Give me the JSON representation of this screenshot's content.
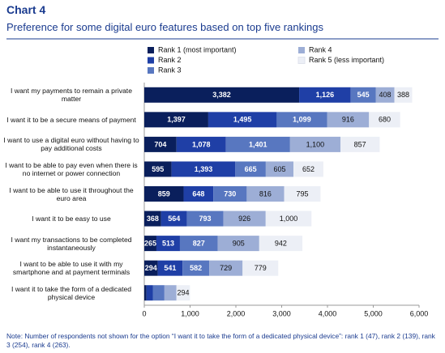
{
  "chart_data": {
    "type": "stacked-bar-horizontal",
    "header": "Chart 4",
    "title": "Preference for some digital euro features based on top five rankings",
    "categories": [
      "I want my payments to remain a private matter",
      "I want it to be a secure means of payment",
      "I want to use a digital euro without having to pay additional costs",
      "I want to be able to pay even when there is no internet or power connection",
      "I want to be able to use it throughout the euro area",
      "I want it to be easy to use",
      "I want my transactions to be completed instantaneously",
      "I want to be able to use it with my smartphone and at payment terminals",
      "I want it to take the form of a dedicated physical device"
    ],
    "series": [
      {
        "name": "Rank 1 (most important)",
        "color": "#0a1f5c",
        "label_color": "#ffffff",
        "values": [
          3382,
          1397,
          704,
          595,
          859,
          368,
          265,
          294,
          47
        ],
        "value_labels": [
          "3,382",
          "1,397",
          "704",
          "595",
          "859",
          "368",
          "265",
          "294",
          null
        ]
      },
      {
        "name": "Rank 2",
        "color": "#1f3fa6",
        "label_color": "#ffffff",
        "values": [
          1126,
          1495,
          1078,
          1393,
          648,
          564,
          513,
          541,
          139
        ],
        "value_labels": [
          "1,126",
          "1,495",
          "1,078",
          "1,393",
          "648",
          "564",
          "513",
          "541",
          null
        ]
      },
      {
        "name": "Rank 3",
        "color": "#5877c0",
        "label_color": "#ffffff",
        "values": [
          545,
          1099,
          1401,
          665,
          730,
          793,
          827,
          582,
          254
        ],
        "value_labels": [
          "545",
          "1,099",
          "1,401",
          "665",
          "730",
          "793",
          "827",
          "582",
          null
        ]
      },
      {
        "name": "Rank 4",
        "color": "#9daed6",
        "label_color": "#111111",
        "values": [
          408,
          916,
          1100,
          605,
          816,
          926,
          905,
          729,
          263
        ],
        "value_labels": [
          "408",
          "916",
          "1,100",
          "605",
          "816",
          "926",
          "905",
          "729",
          null
        ]
      },
      {
        "name": "Rank 5 (less important)",
        "color": "#eceff6",
        "label_color": "#111111",
        "values": [
          388,
          680,
          857,
          652,
          795,
          1000,
          942,
          779,
          294
        ],
        "value_labels": [
          "388",
          "680",
          "857",
          "652",
          "795",
          "1,000",
          "942",
          "779",
          "294"
        ]
      }
    ],
    "xlim": [
      0,
      6000
    ],
    "xticks": [
      0,
      {
        "value": 1000,
        "label": "1,000"
      },
      {
        "value": 2000,
        "label": "2,000"
      },
      {
        "value": 3000,
        "label": "3,000"
      },
      {
        "value": 4000,
        "label": "4,000"
      },
      {
        "value": 5000,
        "label": "5,000"
      },
      {
        "value": 6000,
        "label": "6,000"
      }
    ],
    "grid": false,
    "note": "Note: Number of respondents not shown for the option “I want it to take the form of a dedicated physical device”: rank 1 (47), rank 2 (139), rank 3 (254), rank 4 (263)."
  }
}
